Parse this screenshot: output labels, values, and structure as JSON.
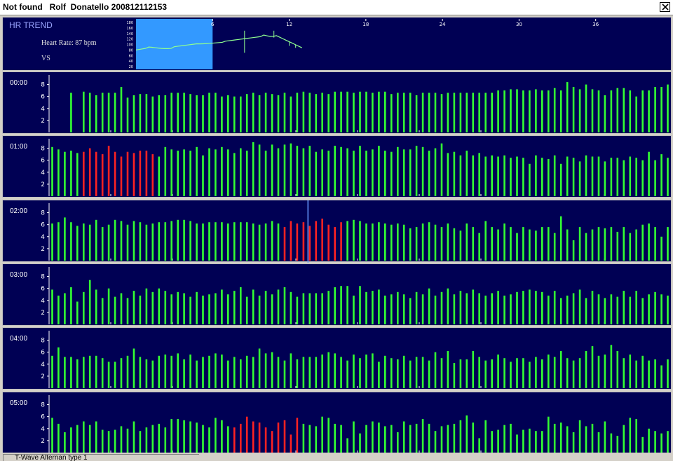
{
  "window": {
    "title": "Not found   Rolf  Donatello 200812112153",
    "close_label": "Close"
  },
  "trend": {
    "title": "HR TREND",
    "heart_rate": "Heart Rate: 87 bpm",
    "label_vs": "VS",
    "y_ticks": [
      "180",
      "160",
      "140",
      "120",
      "100",
      "80",
      "60",
      "40",
      "20"
    ],
    "x_ticks": [
      "6",
      "12",
      "18",
      "24",
      "30",
      "36"
    ],
    "highlight_hours": [
      0,
      6
    ],
    "series_color": "#90ff90",
    "highlight_color": "#3399ff"
  },
  "rows": [
    {
      "time": "00:00",
      "y_ticks": [
        "8",
        "6",
        "4",
        "2"
      ],
      "values": [
        null,
        null,
        null,
        6.6,
        null,
        6.8,
        6.6,
        6.2,
        6.6,
        6.6,
        6.6,
        7.6,
        5.8,
        6.2,
        6.4,
        6.4,
        6.0,
        6.2,
        6.2,
        6.6,
        6.6,
        6.6,
        6.4,
        6.2,
        6.2,
        6.6,
        6.6,
        6.0,
        6.2,
        6.0,
        6.0,
        6.4,
        6.6,
        6.2,
        6.6,
        6.4,
        6.2,
        6.6,
        6.0,
        6.6,
        6.8,
        6.6,
        6.4,
        6.6,
        6.4,
        6.8,
        6.8,
        6.8,
        6.6,
        6.8,
        6.8,
        6.6,
        6.8,
        6.8,
        6.4,
        6.6,
        6.6,
        6.6,
        6.2,
        6.6,
        6.6,
        6.6,
        6.4,
        6.6,
        6.6,
        6.6,
        6.6,
        6.6,
        6.6,
        6.6,
        6.6,
        7.0,
        7.0,
        7.2,
        7.2,
        7.0,
        7.0,
        7.2,
        7.0,
        7.0,
        7.4,
        7.0,
        8.4,
        7.6,
        7.2,
        8.0,
        7.2,
        7.0,
        6.2,
        7.0,
        7.4,
        7.4,
        7.0,
        6.0,
        7.0,
        7.0,
        7.6,
        7.6,
        8.0
      ]
    },
    {
      "time": "01:00",
      "y_ticks": [
        "8",
        "6",
        "4",
        "2"
      ],
      "values": [
        8.2,
        7.8,
        7.4,
        7.6,
        7.2,
        7.4,
        8.0,
        7.4,
        7.0,
        8.4,
        7.4,
        6.6,
        7.4,
        7.2,
        7.6,
        7.6,
        7.0,
        6.6,
        8.2,
        7.8,
        7.6,
        7.8,
        7.6,
        8.2,
        6.8,
        8.0,
        7.8,
        8.2,
        7.8,
        7.2,
        8.0,
        7.6,
        9.0,
        8.6,
        7.6,
        8.6,
        8.0,
        8.6,
        8.8,
        8.4,
        8.0,
        8.4,
        7.4,
        7.8,
        7.6,
        8.4,
        8.2,
        8.0,
        7.6,
        8.4,
        7.6,
        7.8,
        8.4,
        7.6,
        7.4,
        8.2,
        7.8,
        7.8,
        8.4,
        8.2,
        7.6,
        8.0,
        8.8,
        7.2,
        7.4,
        6.8,
        7.6,
        6.8,
        7.2,
        6.6,
        6.8,
        6.6,
        6.8,
        6.4,
        6.6,
        6.4,
        5.4,
        6.8,
        6.4,
        6.2,
        6.8,
        5.4,
        6.6,
        6.4,
        5.8,
        6.8,
        6.6,
        6.6,
        5.8,
        6.4,
        6.4,
        6.0,
        6.6,
        6.4,
        6.0,
        7.4,
        6.0,
        7.0,
        6.4
      ],
      "red_range": [
        5,
        16
      ]
    },
    {
      "time": "02:00",
      "y_ticks": [
        "8",
        "6",
        "4",
        "2"
      ],
      "values": [
        6.2,
        6.4,
        7.2,
        6.4,
        5.8,
        6.2,
        6.0,
        6.8,
        5.6,
        6.0,
        6.8,
        6.6,
        6.0,
        6.6,
        6.4,
        6.0,
        6.2,
        6.4,
        6.4,
        6.6,
        6.8,
        6.8,
        6.6,
        6.2,
        6.2,
        6.4,
        6.4,
        6.4,
        6.2,
        6.4,
        6.4,
        6.4,
        6.2,
        6.0,
        6.2,
        6.6,
        6.2,
        5.6,
        6.6,
        6.2,
        6.4,
        5.8,
        6.6,
        7.0,
        6.0,
        5.6,
        6.4,
        6.6,
        6.8,
        6.6,
        6.2,
        6.2,
        6.4,
        6.2,
        6.0,
        6.2,
        6.0,
        5.4,
        5.6,
        6.2,
        6.4,
        6.0,
        5.6,
        6.2,
        5.4,
        5.0,
        6.2,
        5.6,
        4.6,
        6.6,
        5.6,
        5.2,
        6.2,
        5.6,
        4.6,
        5.6,
        5.2,
        5.0,
        5.6,
        5.6,
        4.6,
        7.4,
        5.2,
        3.4,
        5.6,
        4.6,
        5.2,
        5.6,
        5.4,
        5.6,
        4.8,
        5.6,
        4.6,
        5.2,
        6.0,
        6.2,
        5.6,
        4.0,
        5.6
      ],
      "red_range": [
        37,
        46
      ],
      "cursor_index": 41
    },
    {
      "time": "03:00",
      "y_ticks": [
        "8",
        "6",
        "4",
        "2"
      ],
      "values": [
        5.8,
        4.8,
        5.2,
        6.2,
        3.8,
        5.4,
        7.4,
        5.8,
        4.4,
        6.0,
        4.6,
        5.2,
        4.4,
        5.6,
        4.8,
        6.0,
        5.4,
        6.0,
        5.6,
        5.0,
        5.4,
        5.2,
        4.6,
        5.4,
        4.8,
        5.0,
        5.2,
        5.8,
        5.0,
        5.6,
        6.2,
        4.6,
        5.8,
        4.8,
        5.6,
        5.0,
        5.8,
        6.2,
        5.4,
        4.6,
        5.2,
        5.2,
        5.2,
        5.2,
        5.6,
        6.2,
        6.4,
        6.4,
        4.8,
        6.4,
        5.4,
        5.6,
        5.8,
        4.8,
        5.0,
        5.4,
        5.0,
        4.4,
        5.4,
        5.0,
        6.0,
        4.8,
        5.4,
        6.0,
        5.0,
        5.6,
        5.2,
        5.8,
        5.2,
        4.8,
        5.2,
        5.6,
        4.8,
        5.0,
        5.4,
        5.6,
        5.8,
        5.6,
        5.4,
        4.8,
        5.6,
        4.4,
        4.8,
        5.2,
        5.8,
        4.4,
        5.6,
        5.0,
        4.4,
        5.0,
        4.6,
        5.6,
        4.6,
        5.6,
        4.4,
        5.0,
        5.4,
        5.0,
        4.8
      ]
    },
    {
      "time": "04:00",
      "y_ticks": [
        "8",
        "6",
        "4",
        "2"
      ],
      "values": [
        5.4,
        6.8,
        5.2,
        5.2,
        4.8,
        5.2,
        5.4,
        5.4,
        5.0,
        4.4,
        4.4,
        5.0,
        5.4,
        6.6,
        5.2,
        4.8,
        4.6,
        5.4,
        5.6,
        5.4,
        5.8,
        4.8,
        5.6,
        4.6,
        5.2,
        5.4,
        5.8,
        5.6,
        4.6,
        5.2,
        4.8,
        5.4,
        5.2,
        6.6,
        5.8,
        6.0,
        5.2,
        4.6,
        5.8,
        4.8,
        5.2,
        5.2,
        5.2,
        5.6,
        6.0,
        5.8,
        5.2,
        4.6,
        5.6,
        5.0,
        5.6,
        5.8,
        4.4,
        5.4,
        5.0,
        4.8,
        5.4,
        4.6,
        5.2,
        5.2,
        4.6,
        6.0,
        5.0,
        6.2,
        4.2,
        4.8,
        4.8,
        6.2,
        5.2,
        4.6,
        4.8,
        5.6,
        5.0,
        4.4,
        5.0,
        5.0,
        4.4,
        5.2,
        4.8,
        5.6,
        5.2,
        6.2,
        5.0,
        4.6,
        5.0,
        6.2,
        7.0,
        5.4,
        5.6,
        7.2,
        6.2,
        5.0,
        5.6,
        4.6,
        5.4,
        4.6,
        4.8,
        3.8,
        4.8
      ]
    },
    {
      "time": "05:00",
      "y_ticks": [
        "8",
        "6",
        "4",
        "2"
      ],
      "values": [
        5.8,
        4.8,
        3.4,
        4.2,
        4.6,
        5.2,
        4.6,
        5.2,
        3.8,
        3.6,
        3.8,
        4.4,
        4.0,
        5.2,
        3.6,
        4.2,
        4.6,
        4.8,
        4.2,
        5.6,
        5.6,
        5.4,
        5.2,
        5.0,
        4.6,
        4.2,
        5.8,
        5.4,
        4.4,
        4.2,
        4.8,
        6.0,
        5.2,
        5.0,
        4.2,
        3.6,
        5.0,
        5.4,
        3.0,
        5.8,
        4.8,
        4.6,
        4.4,
        6.0,
        5.8,
        4.8,
        4.6,
        2.4,
        5.2,
        3.2,
        4.6,
        5.2,
        5.0,
        4.4,
        4.6,
        3.4,
        5.2,
        4.6,
        4.8,
        5.6,
        4.8,
        3.6,
        4.4,
        4.6,
        4.8,
        5.4,
        6.2,
        5.0,
        2.4,
        5.4,
        3.6,
        3.8,
        4.6,
        4.8,
        3.0,
        3.8,
        4.0,
        3.6,
        3.6,
        6.0,
        4.8,
        5.0,
        4.4,
        3.4,
        5.4,
        4.4,
        4.8,
        3.4,
        5.2,
        3.2,
        2.8,
        4.6,
        5.8,
        5.6,
        2.6,
        4.0,
        3.6,
        3.2,
        3.6
      ],
      "red_range": [
        29,
        39
      ]
    }
  ],
  "status": {
    "text": "T-Wave Alternan type 1"
  },
  "colors": {
    "panel_bg": "#000054",
    "bar_green": "#33ff33",
    "bar_red": "#ff2222",
    "cursor": "#6699ff",
    "axis": "#ffffff"
  }
}
